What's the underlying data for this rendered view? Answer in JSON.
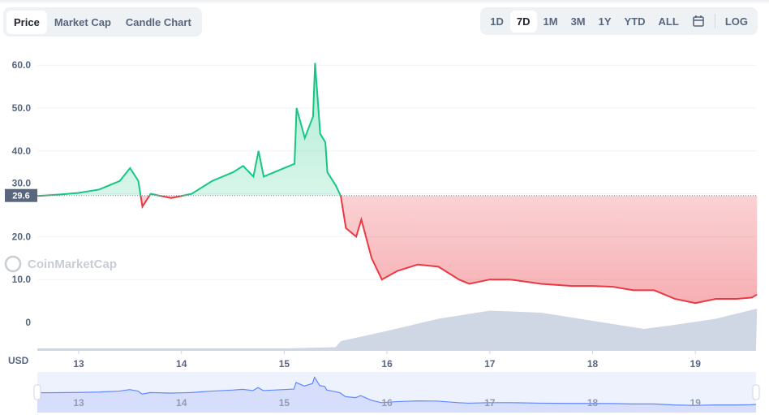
{
  "tabs": [
    "Price",
    "Market Cap",
    "Candle Chart"
  ],
  "active_tab": "Price",
  "ranges": [
    "1D",
    "7D",
    "1M",
    "3M",
    "1Y",
    "YTD",
    "ALL"
  ],
  "active_range": "7D",
  "calendar_icon": "calendar-icon",
  "log_label": "LOG",
  "watermark": "CoinMarketCap",
  "currency_label": "USD",
  "colors": {
    "up": "#16c784",
    "down": "#ea3943",
    "volume": "#cfd6e4",
    "navigator": "#6188ff"
  },
  "chart_data": {
    "type": "line",
    "reference_value": 29.6,
    "reference_label": "29.6",
    "ylim": [
      0,
      62
    ],
    "yticks": [
      "10.0",
      "20.0",
      "30.0",
      "40.0",
      "50.0",
      "60.0"
    ],
    "ytick_values": [
      10,
      20,
      30,
      40,
      50,
      60
    ],
    "xlim": [
      12.6,
      19.6
    ],
    "xticks": [
      "13",
      "14",
      "15",
      "16",
      "17",
      "18",
      "19"
    ],
    "xtick_values": [
      13,
      14,
      15,
      16,
      17,
      18,
      19
    ],
    "grid": true,
    "price": [
      [
        12.6,
        29.5
      ],
      [
        12.8,
        29.8
      ],
      [
        13.0,
        30.2
      ],
      [
        13.2,
        31
      ],
      [
        13.4,
        33
      ],
      [
        13.5,
        36
      ],
      [
        13.58,
        33
      ],
      [
        13.62,
        27
      ],
      [
        13.7,
        30
      ],
      [
        13.9,
        29
      ],
      [
        14.0,
        29.5
      ],
      [
        14.1,
        30
      ],
      [
        14.3,
        33
      ],
      [
        14.5,
        35
      ],
      [
        14.6,
        36.5
      ],
      [
        14.7,
        34
      ],
      [
        14.75,
        40
      ],
      [
        14.8,
        34
      ],
      [
        15.0,
        36
      ],
      [
        15.1,
        37
      ],
      [
        15.12,
        50
      ],
      [
        15.2,
        43
      ],
      [
        15.28,
        48
      ],
      [
        15.3,
        60.5
      ],
      [
        15.35,
        44
      ],
      [
        15.4,
        42
      ],
      [
        15.42,
        35
      ],
      [
        15.5,
        32
      ],
      [
        15.55,
        29.5
      ],
      [
        15.6,
        22
      ],
      [
        15.7,
        20
      ],
      [
        15.75,
        24
      ],
      [
        15.85,
        15
      ],
      [
        15.95,
        10
      ],
      [
        16.1,
        12
      ],
      [
        16.3,
        13.5
      ],
      [
        16.5,
        13
      ],
      [
        16.7,
        10
      ],
      [
        16.8,
        9
      ],
      [
        17.0,
        10
      ],
      [
        17.2,
        10
      ],
      [
        17.5,
        9
      ],
      [
        17.8,
        8.5
      ],
      [
        18.0,
        8.5
      ],
      [
        18.2,
        8.3
      ],
      [
        18.4,
        7.5
      ],
      [
        18.6,
        7.5
      ],
      [
        18.8,
        5.5
      ],
      [
        19.0,
        4.5
      ],
      [
        19.2,
        5.5
      ],
      [
        19.4,
        5.5
      ],
      [
        19.55,
        5.8
      ],
      [
        19.6,
        6.5
      ]
    ],
    "volume_relative": [
      [
        12.6,
        0.02
      ],
      [
        15.0,
        0.02
      ],
      [
        15.5,
        0.05
      ],
      [
        15.55,
        0.2
      ],
      [
        16.0,
        0.45
      ],
      [
        16.5,
        0.75
      ],
      [
        17.0,
        0.95
      ],
      [
        17.5,
        0.9
      ],
      [
        18.0,
        0.7
      ],
      [
        18.5,
        0.5
      ],
      [
        18.8,
        0.6
      ],
      [
        19.2,
        0.75
      ],
      [
        19.6,
        1.0
      ]
    ]
  }
}
